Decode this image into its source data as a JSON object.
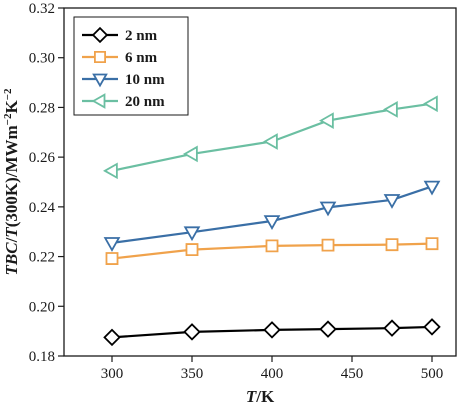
{
  "chart_data": {
    "type": "line",
    "xlabel_html": "<tspan font-style=\"italic\">T</tspan>/K",
    "ylabel_html": "<tspan font-style=\"italic\">TBC</tspan>/<tspan font-style=\"italic\">T</tspan>(300K)/MWm<tspan baseline-shift=\"super\" font-size=\"11\">−2</tspan>K<tspan baseline-shift=\"super\" font-size=\"11\">−2</tspan>",
    "xlim": [
      270,
      515
    ],
    "ylim": [
      0.18,
      0.32
    ],
    "xticks": [
      300,
      350,
      400,
      450,
      500
    ],
    "yticks": [
      0.18,
      0.2,
      0.22,
      0.24,
      0.26,
      0.28,
      0.3,
      0.32
    ],
    "ytick_labels": [
      "0.18",
      "0.20",
      "0.22",
      "0.24",
      "0.26",
      "0.28",
      "0.30",
      "0.32"
    ],
    "legend_position": "top-left",
    "grid": false,
    "series": [
      {
        "name": "2 nm",
        "marker": "diamond",
        "color": "#000000",
        "points": [
          [
            300,
            0.1875
          ],
          [
            350,
            0.1897
          ],
          [
            400,
            0.1905
          ],
          [
            435,
            0.1908
          ],
          [
            475,
            0.1912
          ],
          [
            500,
            0.1917
          ]
        ]
      },
      {
        "name": "6 nm",
        "marker": "square",
        "color": "#F0A24B",
        "points": [
          [
            300,
            0.2192
          ],
          [
            350,
            0.2228
          ],
          [
            400,
            0.2243
          ],
          [
            435,
            0.2246
          ],
          [
            475,
            0.2248
          ],
          [
            500,
            0.2252
          ]
        ]
      },
      {
        "name": "10 nm",
        "marker": "triangle-down",
        "color": "#3A6FA6",
        "points": [
          [
            300,
            0.2255
          ],
          [
            350,
            0.2298
          ],
          [
            400,
            0.2343
          ],
          [
            435,
            0.2398
          ],
          [
            475,
            0.2428
          ],
          [
            500,
            0.2482
          ]
        ]
      },
      {
        "name": "20 nm",
        "marker": "triangle-left",
        "color": "#6BBFA2",
        "points": [
          [
            300,
            0.2545
          ],
          [
            350,
            0.2613
          ],
          [
            400,
            0.2663
          ],
          [
            435,
            0.2747
          ],
          [
            475,
            0.2792
          ],
          [
            500,
            0.2815
          ]
        ]
      }
    ]
  }
}
